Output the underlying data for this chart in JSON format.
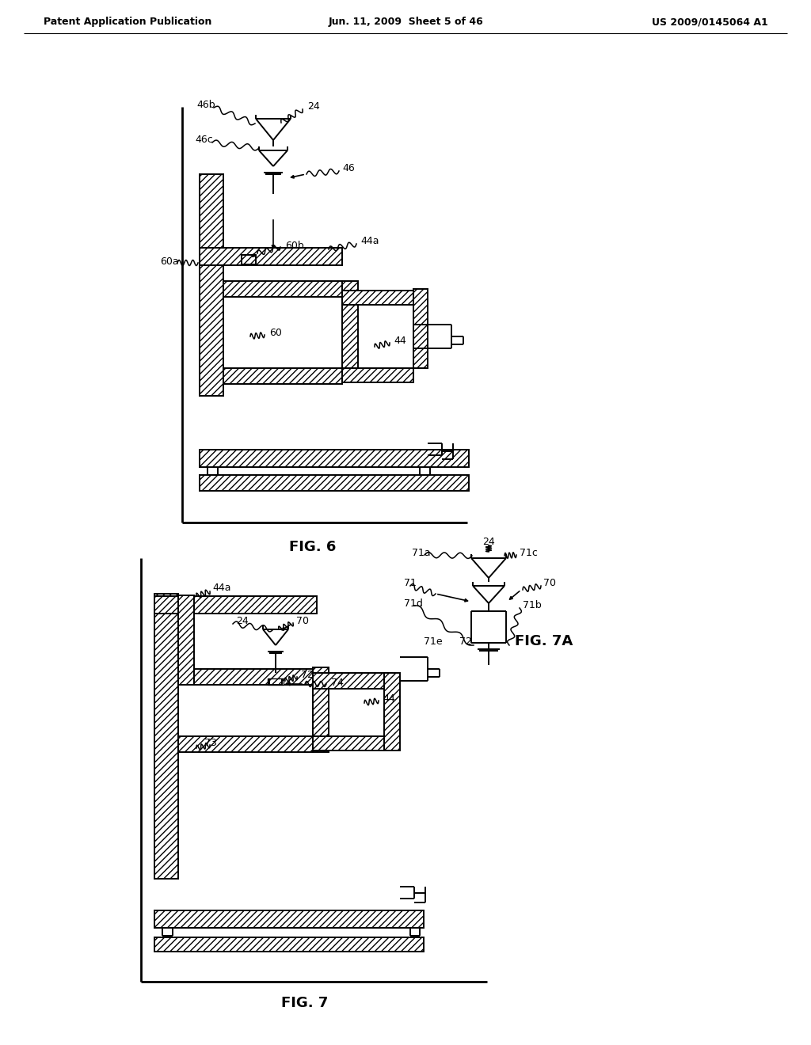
{
  "header_left": "Patent Application Publication",
  "header_mid": "Jun. 11, 2009  Sheet 5 of 46",
  "header_right": "US 2009/0145064 A1",
  "fig6_label": "FIG. 6",
  "fig7_label": "FIG. 7",
  "fig7a_label": "FIG. 7A",
  "background_color": "#ffffff"
}
